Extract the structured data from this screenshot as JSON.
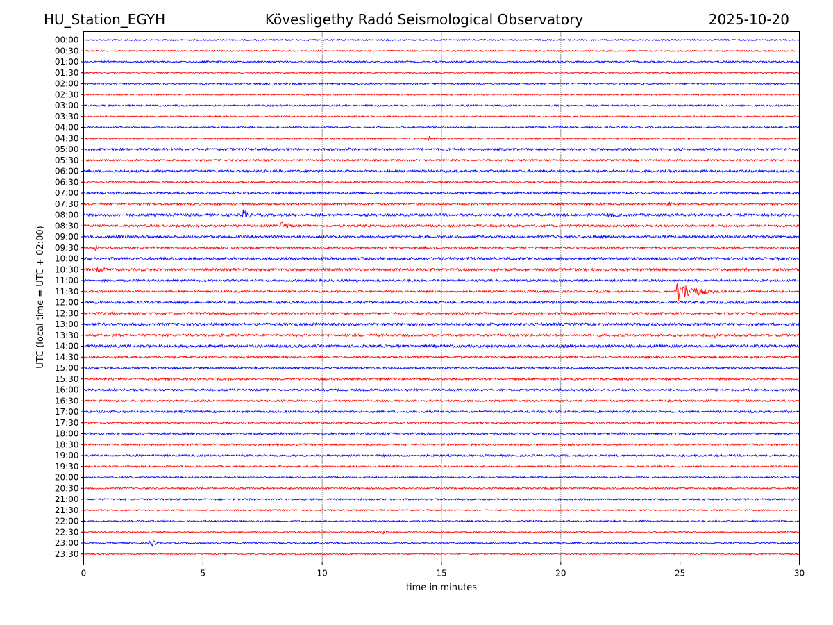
{
  "header": {
    "station": "HU_Station_EGYH",
    "observatory": "Kövesligethy Radó Seismological Observatory",
    "date": "2025-10-20"
  },
  "colors": {
    "trace_a": "#0000ff",
    "trace_b": "#ff0000",
    "grid": "#000000"
  },
  "chart_data": {
    "type": "line",
    "title": "Kövesligethy Radó Seismological Observatory",
    "xlabel": "time in minutes",
    "ylabel": "UTC (local time = UTC + 02:00)",
    "xlim": [
      0,
      30
    ],
    "x_ticks": [
      "0",
      "5",
      "10",
      "15",
      "20",
      "25",
      "30"
    ],
    "vertical_grid": true,
    "row_labels": [
      "00:00",
      "00:30",
      "01:00",
      "01:30",
      "02:00",
      "02:30",
      "03:00",
      "03:30",
      "04:00",
      "04:30",
      "05:00",
      "05:30",
      "06:00",
      "06:30",
      "07:00",
      "07:30",
      "08:00",
      "08:30",
      "09:00",
      "09:30",
      "10:00",
      "10:30",
      "11:00",
      "11:30",
      "12:00",
      "12:30",
      "13:00",
      "13:30",
      "14:00",
      "14:30",
      "15:00",
      "15:30",
      "16:00",
      "16:30",
      "17:00",
      "17:30",
      "18:00",
      "18:30",
      "19:00",
      "19:30",
      "20:00",
      "20:30",
      "21:00",
      "21:30",
      "22:00",
      "22:30",
      "23:00",
      "23:30"
    ],
    "noise_levels": [
      1.0,
      1.0,
      1.2,
      1.0,
      1.2,
      1.0,
      1.2,
      1.0,
      1.2,
      1.0,
      1.6,
      1.3,
      1.7,
      1.3,
      1.8,
      1.5,
      1.9,
      1.7,
      1.8,
      1.7,
      2.0,
      1.8,
      1.6,
      1.5,
      1.8,
      1.7,
      1.9,
      1.7,
      1.9,
      1.7,
      1.6,
      1.5,
      1.5,
      1.4,
      1.5,
      1.4,
      1.5,
      1.3,
      1.4,
      1.2,
      1.2,
      1.1,
      1.2,
      1.0,
      1.1,
      1.0,
      1.1,
      1.0
    ],
    "events": [
      {
        "row": "04:30",
        "minute": 14.5,
        "amplitude": 4,
        "duration": 0.2
      },
      {
        "row": "05:00",
        "minute": 11.0,
        "amplitude": 3,
        "duration": 1.5
      },
      {
        "row": "07:00",
        "minute": 0.8,
        "amplitude": 3,
        "duration": 1.5
      },
      {
        "row": "07:30",
        "minute": 24.6,
        "amplitude": 4,
        "duration": 0.2
      },
      {
        "row": "08:00",
        "minute": 6.7,
        "amplitude": 9,
        "duration": 0.8
      },
      {
        "row": "08:00",
        "minute": 22.0,
        "amplitude": 4,
        "duration": 2.0
      },
      {
        "row": "08:00",
        "minute": 27.8,
        "amplitude": 4,
        "duration": 0.3
      },
      {
        "row": "08:30",
        "minute": 8.3,
        "amplitude": 8,
        "duration": 0.5
      },
      {
        "row": "08:30",
        "minute": 8.6,
        "amplitude": 6,
        "duration": 0.4
      },
      {
        "row": "09:30",
        "minute": 0.5,
        "amplitude": 5,
        "duration": 0.5
      },
      {
        "row": "10:30",
        "minute": 0.6,
        "amplitude": 4,
        "duration": 2.0
      },
      {
        "row": "11:30",
        "minute": 24.9,
        "amplitude": 15,
        "duration": 2.5
      },
      {
        "row": "12:00",
        "minute": 0.5,
        "amplitude": 3,
        "duration": 2.0
      },
      {
        "row": "13:30",
        "minute": 26.5,
        "amplitude": 5,
        "duration": 0.3
      },
      {
        "row": "22:30",
        "minute": 12.6,
        "amplitude": 4,
        "duration": 0.4
      },
      {
        "row": "23:00",
        "minute": 2.8,
        "amplitude": 5,
        "duration": 1.2
      }
    ]
  }
}
